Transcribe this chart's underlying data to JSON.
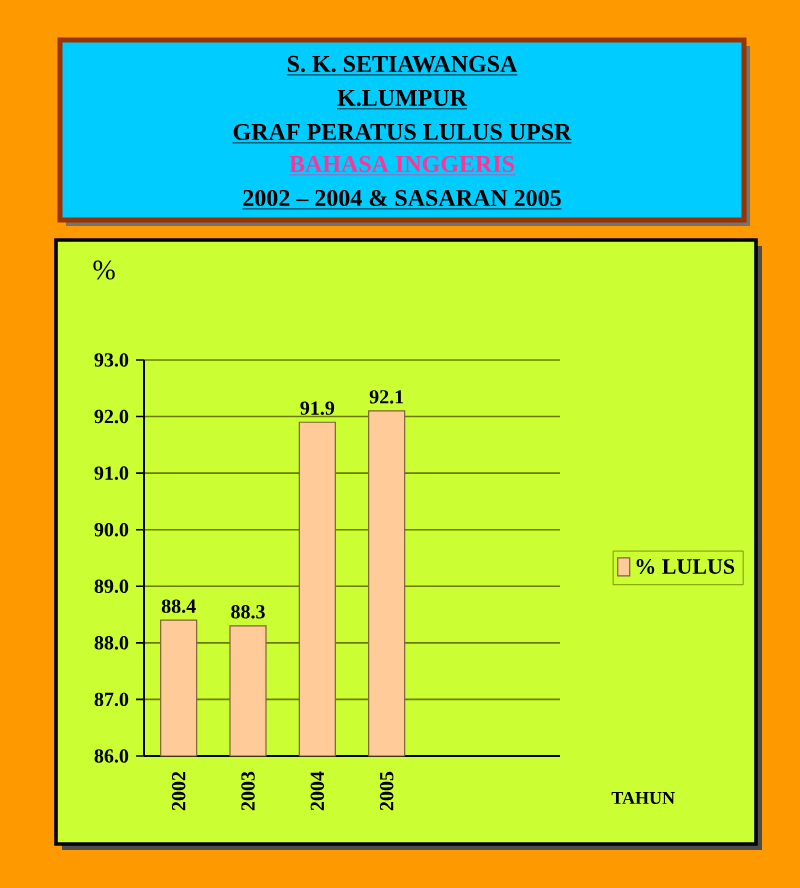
{
  "chart_data": {
    "type": "bar",
    "title": "GRAF PERATUS LULUS UPSR",
    "subtitle": "BAHASA INGGERIS",
    "annotations": [
      "S. K. SETIAWANGSA",
      "K.LUMPUR",
      "2002 – 2004 & SASARAN 2005"
    ],
    "ylabel": "%",
    "xlabel": "TAHUN",
    "categories": [
      "2002",
      "2003",
      "2004",
      "2005",
      null,
      null
    ],
    "series": [
      {
        "name": "% LULUS",
        "color": "#ffcc99",
        "values": [
          88.4,
          88.3,
          91.9,
          92.1,
          null,
          null
        ]
      }
    ],
    "ylim": [
      86,
      93
    ],
    "yticks": [
      {
        "value": 86,
        "label": "86.0"
      },
      {
        "value": 87,
        "label": "87.0"
      },
      {
        "value": 88,
        "label": "88.0"
      },
      {
        "value": 89,
        "label": "89.0"
      },
      {
        "value": 90,
        "label": "90.0"
      },
      {
        "value": 91,
        "label": "91.0"
      },
      {
        "value": 92,
        "label": "92.0"
      },
      {
        "value": 93,
        "label": "93.0"
      }
    ],
    "grid": "y",
    "legend": "right",
    "data_labels": true
  }
}
